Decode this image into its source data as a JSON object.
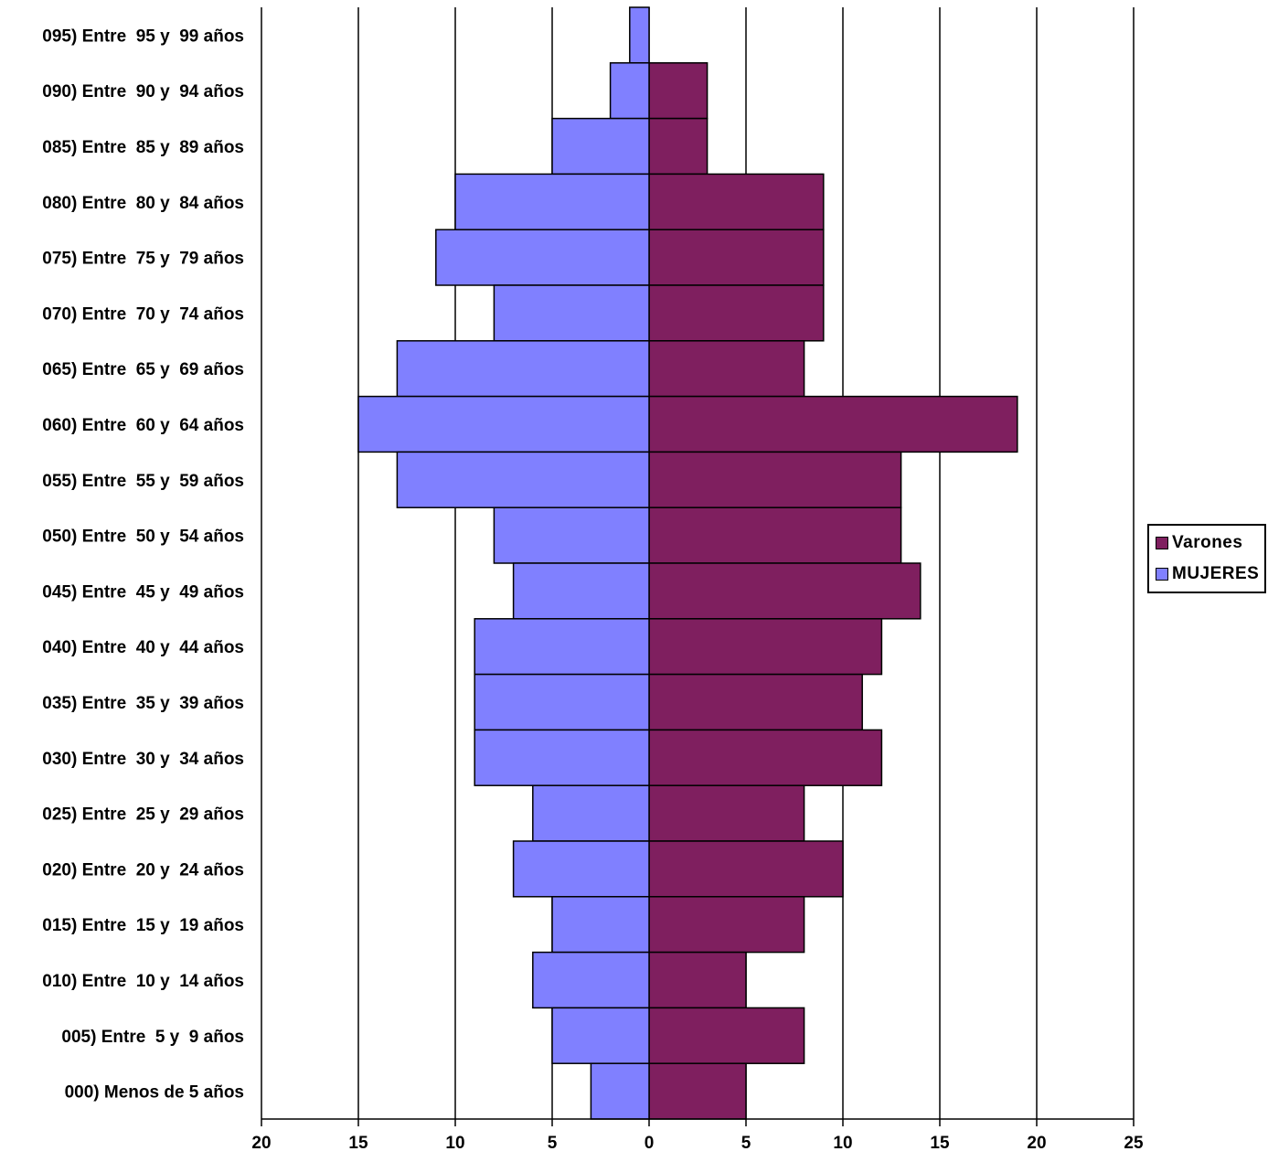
{
  "chart_data": {
    "type": "bar",
    "orientation": "horizontal",
    "layout": "population-pyramid",
    "categories": [
      "095) Entre  95 y  99 años",
      "090) Entre  90 y  94 años",
      "085) Entre  85 y  89 años",
      "080) Entre  80 y  84 años",
      "075) Entre  75 y  79 años",
      "070) Entre  70 y  74 años",
      "065) Entre  65 y  69 años",
      "060) Entre  60 y  64 años",
      "055) Entre  55 y  59 años",
      "050) Entre  50 y  54 años",
      "045) Entre  45 y  49 años",
      "040) Entre  40 y  44 años",
      "035) Entre  35 y  39 años",
      "030) Entre  30 y  34 años",
      "025) Entre  25 y  29 años",
      "020) Entre  20 y  24 años",
      "015) Entre  15 y  19 años",
      "010) Entre  10 y  14 años",
      "005) Entre  5 y  9 años",
      "000) Menos de 5 años"
    ],
    "series": [
      {
        "name": "Varones",
        "color": "#7f1f5f",
        "side": "right",
        "values": [
          0,
          3,
          3,
          9,
          9,
          9,
          8,
          19,
          13,
          13,
          14,
          12,
          11,
          12,
          8,
          10,
          8,
          5,
          8,
          5
        ]
      },
      {
        "name": "MUJERES",
        "color": "#8080ff",
        "side": "left",
        "values": [
          1,
          2,
          5,
          10,
          11,
          8,
          13,
          15,
          13,
          8,
          7,
          9,
          9,
          9,
          6,
          7,
          5,
          6,
          5,
          3
        ]
      }
    ],
    "xlim": [
      -20,
      25
    ],
    "x_ticks": [
      -20,
      -15,
      -10,
      -5,
      0,
      5,
      10,
      15,
      20,
      25
    ],
    "x_tick_labels": [
      "20",
      "15",
      "10",
      "5",
      "0",
      "5",
      "10",
      "15",
      "20",
      "25"
    ],
    "grid": "vertical",
    "legend_position": "right",
    "title": "",
    "xlabel": "",
    "ylabel": ""
  }
}
